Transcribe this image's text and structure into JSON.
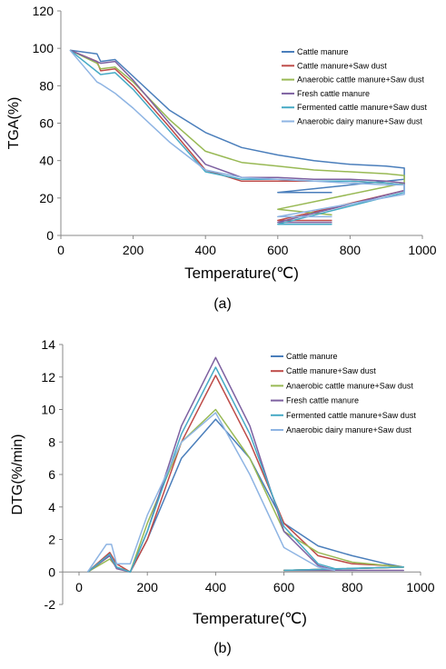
{
  "chart_data": [
    {
      "type": "line",
      "xlabel": "Temperature(℃)",
      "ylabel": "TGA(%)",
      "caption": "(a)",
      "xlim": [
        0,
        1000
      ],
      "xticks": [
        0,
        200,
        400,
        600,
        800,
        1000
      ],
      "ylim": [
        0,
        120
      ],
      "yticks": [
        0,
        20,
        40,
        60,
        80,
        100,
        120
      ],
      "grid": false,
      "series": [
        {
          "name": "Cattle manure",
          "color": "#4a7ebb",
          "x": [
            25,
            100,
            110,
            150,
            200,
            300,
            400,
            500,
            600,
            700,
            800,
            900,
            950,
            950,
            600,
            750
          ],
          "values": [
            99,
            97,
            93,
            94,
            85,
            67,
            55,
            47,
            43,
            40,
            38,
            37,
            36,
            30,
            23,
            23
          ]
        },
        {
          "name": "Cattle manure+Saw dust",
          "color": "#be4b48",
          "x": [
            25,
            100,
            110,
            150,
            200,
            300,
            400,
            500,
            600,
            700,
            800,
            900,
            950,
            950,
            600,
            750
          ],
          "values": [
            99,
            93,
            88,
            89,
            80,
            58,
            35,
            29,
            29,
            29,
            29,
            28,
            27,
            24,
            8,
            8
          ]
        },
        {
          "name": "Anaerobic cattle manure+Saw dust",
          "color": "#98b954",
          "x": [
            25,
            100,
            110,
            150,
            200,
            300,
            400,
            500,
            600,
            700,
            800,
            900,
            950,
            950,
            600,
            750
          ],
          "values": [
            99,
            92,
            89,
            90,
            82,
            62,
            45,
            39,
            37,
            35,
            34,
            33,
            32,
            28,
            14,
            11
          ]
        },
        {
          "name": "Fresh cattle manure",
          "color": "#7d60a0",
          "x": [
            25,
            110,
            150,
            200,
            300,
            400,
            500,
            600,
            700,
            800,
            900,
            950,
            950,
            600,
            750
          ],
          "values": [
            99,
            92,
            93,
            83,
            60,
            38,
            31,
            31,
            30,
            30,
            29,
            28,
            24,
            7,
            7
          ]
        },
        {
          "name": "Fermented cattle manure+Saw dust",
          "color": "#46aac5",
          "x": [
            25,
            110,
            150,
            200,
            300,
            400,
            500,
            600,
            700,
            800,
            900,
            950,
            950,
            600,
            750
          ],
          "values": [
            99,
            86,
            87,
            78,
            56,
            34,
            30,
            30,
            29,
            29,
            28,
            27,
            23,
            6,
            6
          ]
        },
        {
          "name": "Anaerobic dairy manure+Saw dust",
          "color": "#8eb4e3",
          "x": [
            25,
            100,
            110,
            150,
            200,
            300,
            400,
            500,
            600,
            700,
            800,
            900,
            950,
            950,
            600,
            750
          ],
          "values": [
            99,
            82,
            81,
            76,
            68,
            50,
            35,
            31,
            30,
            29,
            28,
            27,
            27,
            22,
            10,
            10
          ]
        }
      ]
    },
    {
      "type": "line",
      "xlabel": "Temperature(℃)",
      "ylabel": "DTG(%/min)",
      "caption": "(b)",
      "xlim": [
        0,
        1000
      ],
      "xticks": [
        0,
        200,
        400,
        600,
        800,
        1000
      ],
      "ylim": [
        -2,
        14
      ],
      "yticks": [
        -2,
        0,
        2,
        4,
        6,
        8,
        10,
        12,
        14
      ],
      "grid": false,
      "series": [
        {
          "name": "Cattle manure",
          "color": "#4a7ebb",
          "x": [
            25,
            90,
            110,
            150,
            200,
            300,
            400,
            500,
            600,
            700,
            800,
            900,
            950,
            600,
            750
          ],
          "values": [
            0,
            1,
            0.3,
            0,
            2,
            7,
            9.4,
            7,
            3,
            1.6,
            1,
            0.5,
            0.3,
            0.1,
            0.1
          ]
        },
        {
          "name": "Cattle manure+Saw dust",
          "color": "#be4b48",
          "x": [
            25,
            90,
            110,
            150,
            200,
            300,
            400,
            500,
            600,
            700,
            800,
            900,
            950,
            600,
            750
          ],
          "values": [
            0,
            1.2,
            0.5,
            0,
            2,
            8,
            12.1,
            8,
            3,
            1,
            0.5,
            0.4,
            0.3,
            0.1,
            0.1
          ]
        },
        {
          "name": "Anaerobic cattle manure+Saw dust",
          "color": "#98b954",
          "x": [
            25,
            90,
            110,
            150,
            200,
            300,
            400,
            500,
            600,
            700,
            800,
            950,
            600,
            750
          ],
          "values": [
            0,
            0.8,
            0.3,
            0,
            3,
            8,
            10,
            7,
            2.5,
            1.2,
            0.6,
            0.3,
            0.1,
            0.1
          ]
        },
        {
          "name": "Fresh cattle manure",
          "color": "#7d60a0",
          "x": [
            25,
            90,
            110,
            150,
            200,
            300,
            400,
            500,
            600,
            700,
            750,
            950,
            600
          ],
          "values": [
            0,
            1,
            0.2,
            0,
            2.5,
            9,
            13.2,
            9,
            2.5,
            0.4,
            0.1,
            0.1,
            0.1
          ]
        },
        {
          "name": "Fermented cattle manure+Saw dust",
          "color": "#46aac5",
          "x": [
            25,
            90,
            110,
            150,
            200,
            300,
            400,
            500,
            600,
            700,
            750,
            950,
            600
          ],
          "values": [
            0,
            1.1,
            0.3,
            0,
            2.5,
            8.5,
            12.6,
            8.5,
            2.8,
            0.5,
            0.2,
            0.3,
            0.1
          ]
        },
        {
          "name": "Anaerobic dairy manure+Saw dust",
          "color": "#8eb4e3",
          "x": [
            25,
            80,
            95,
            110,
            150,
            200,
            300,
            400,
            500,
            600,
            700,
            750
          ],
          "values": [
            0,
            1.7,
            1.7,
            0.5,
            0.5,
            3.5,
            8,
            9.8,
            6,
            1.5,
            0.3,
            0.1
          ]
        }
      ]
    }
  ]
}
